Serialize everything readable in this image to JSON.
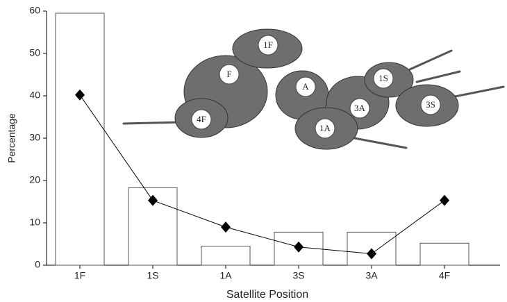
{
  "chart_data": {
    "type": "bar-line",
    "y_label": "Percentage",
    "x_label": "Satellite Position",
    "categories": [
      "1F",
      "1S",
      "1A",
      "3S",
      "3A",
      "4F"
    ],
    "series": [
      {
        "kind": "bar",
        "color": "#ffffff",
        "values": [
          59.5,
          18.3,
          4.5,
          7.8,
          7.8,
          5.2
        ]
      },
      {
        "kind": "line",
        "color": "#000000",
        "values": [
          40.2,
          15.3,
          9.0,
          4.3,
          2.7,
          15.3
        ]
      }
    ],
    "ylim": [
      0,
      60
    ],
    "yticks": [
      0,
      10,
      20,
      30,
      40,
      50,
      60
    ],
    "illustration_labels": [
      "1F",
      "F",
      "A",
      "1S",
      "3A",
      "3S",
      "4F",
      "1A"
    ]
  }
}
